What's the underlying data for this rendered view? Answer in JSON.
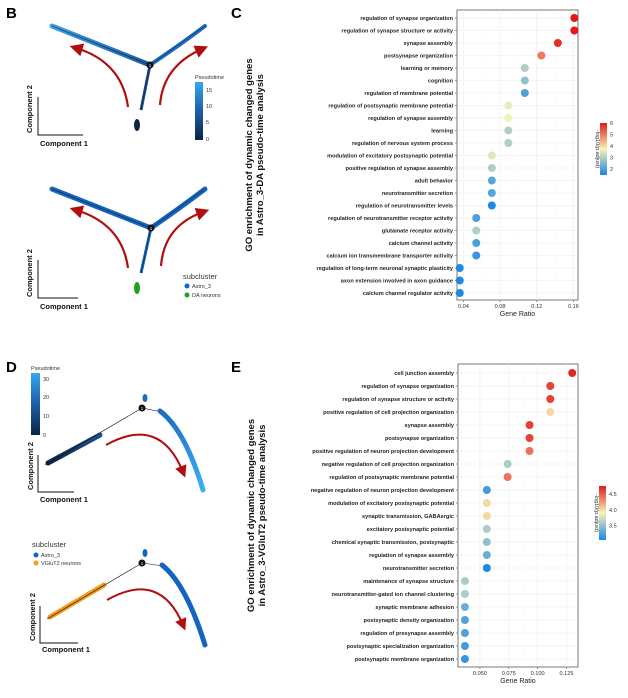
{
  "panels": {
    "B": {
      "label": "B",
      "x_axis": "Component 1",
      "y_axis": "Component 2",
      "pseudotime_legend": {
        "title": "Pseudotime",
        "ticks": [
          "0",
          "5",
          "10",
          "15"
        ]
      },
      "subcluster_legend": {
        "title": "subcluster",
        "items": [
          {
            "label": "Astro_3",
            "color": "#1565c0"
          },
          {
            "label": "DA neurons",
            "color": "#1fa01f"
          }
        ]
      },
      "branch_node": "1"
    },
    "D": {
      "label": "D",
      "x_axis": "Component 1",
      "y_axis": "Component 2",
      "pseudotime_legend": {
        "title": "Pseudotime",
        "ticks": [
          "0",
          "10",
          "20",
          "30"
        ]
      },
      "subcluster_legend": {
        "title": "subcluster",
        "items": [
          {
            "label": "Astro_3",
            "color": "#1565c0"
          },
          {
            "label": "VGluT2 neurons",
            "color": "#f39a1f"
          }
        ]
      },
      "branch_node": "1"
    }
  },
  "chart_data": [
    {
      "panel_label": "C",
      "type": "scatter",
      "ylabel": "GO enrichment of dynamic changed genes in Astro_3-DA pseudo-time analysis",
      "ylabel_lines": [
        "GO enrichment of dynamic changed genes",
        "in Astro_3-DA pseudo-time analysis"
      ],
      "xlabel": "Gene Ratio",
      "xlim": [
        0.033,
        0.165
      ],
      "xticks": [
        0.04,
        0.08,
        0.12,
        0.16
      ],
      "xtick_labels": [
        "0.04",
        "0.08",
        "0.12",
        "0.16"
      ],
      "grid": true,
      "color_legend": {
        "title": "-log10(p.adjust)",
        "range": [
          1.5,
          6
        ],
        "ticks": [
          "2",
          "3",
          "4",
          "5",
          "6"
        ],
        "tick_values": [
          2,
          3,
          4,
          5,
          6
        ],
        "low_color": "#1e88e5",
        "mid_color": "#f7f3b5",
        "high_color": "#e31a1c",
        "placement": "right"
      },
      "categories": [
        "regulation of synapse organization",
        "regulation of synapse structure or activity",
        "synapse assembly",
        "postsynapse organization",
        "learning or memory",
        "cognition",
        "regulation of membrane potential",
        "regulation of postsynaptic membrane potential",
        "regulation of synapse assembly",
        "learning",
        "regulation of nervous system process",
        "modulation of excitatory postsynaptic potential",
        "positive regulation of synapse assembly",
        "adult behavior",
        "neurotransmitter secretion",
        "regulation of neurotransmitter levels",
        "regulation of neurotransmitter receptor activity",
        "glutamate receptor activity",
        "calcium channel activity",
        "calcium ion transmembrane transporter activity",
        "regulation of long-term neuronal synaptic plasticity",
        "axon extension involved in axon guidance",
        "calcium channel regulator activity"
      ],
      "gene_ratio": [
        0.161,
        0.161,
        0.143,
        0.125,
        0.107,
        0.107,
        0.107,
        0.089,
        0.089,
        0.089,
        0.089,
        0.071,
        0.071,
        0.071,
        0.071,
        0.071,
        0.054,
        0.054,
        0.054,
        0.054,
        0.036,
        0.036,
        0.036
      ],
      "neg_log10_padj": [
        6.0,
        6.0,
        5.8,
        5.0,
        3.0,
        2.7,
        2.0,
        3.6,
        3.7,
        3.0,
        3.0,
        3.5,
        3.0,
        2.1,
        2.1,
        1.5,
        2.0,
        3.0,
        2.0,
        1.8,
        1.4,
        1.4,
        1.4
      ]
    },
    {
      "panel_label": "E",
      "type": "scatter",
      "ylabel": "GO enrichment of dynamic changed genes in Astro_3-VGluT2 pseudo-time analysis",
      "ylabel_lines": [
        "GO enrichment of dynamic changed genes",
        "in Astro_3-VGluT2 pseudo-time analysis"
      ],
      "xlabel": "Gene Ratio",
      "xlim": [
        0.031,
        0.135
      ],
      "xticks": [
        0.05,
        0.075,
        0.1,
        0.125
      ],
      "xtick_labels": [
        "0.050",
        "0.075",
        "0.100",
        "0.125"
      ],
      "grid": true,
      "color_legend": {
        "title": "-log10(p.adjust)",
        "range": [
          3.05,
          4.75
        ],
        "ticks": [
          "3.5",
          "4.0",
          "4.5"
        ],
        "tick_values": [
          3.5,
          4.0,
          4.5
        ],
        "low_color": "#1e88e5",
        "mid_color": "#f7f3b5",
        "high_color": "#e31a1c",
        "placement": "right"
      },
      "categories": [
        "cell junction assembly",
        "regulation of synapse organization",
        "regulation of synapse structure or activity",
        "positive regulation of cell projection organization",
        "synapse assembly",
        "postsynapse organization",
        "positive regulation of neuron projection development",
        "negative regulation of cell projection organization",
        "regulation of postsynaptic membrane potential",
        "negative regulation of neuron projection development",
        "modulation of excitatory postsynaptic potential",
        "synaptic transmission, GABAergic",
        "excitatory postsynaptic potential",
        "chemical synaptic transmission, postsynaptic",
        "regulation of synapse assembly",
        "neurotransmitter secretion",
        "maintenance of synapse structure",
        "neurotransmitter-gated ion channel clustering",
        "synaptic membrane adhesion",
        "postsynaptic density organization",
        "regulation of presynapse assembly",
        "postsynaptic specialization organization",
        "postsynaptic membrane organization"
      ],
      "gene_ratio": [
        0.13,
        0.111,
        0.111,
        0.111,
        0.093,
        0.093,
        0.093,
        0.074,
        0.074,
        0.056,
        0.056,
        0.056,
        0.056,
        0.056,
        0.056,
        0.056,
        0.037,
        0.037,
        0.037,
        0.037,
        0.037,
        0.037,
        0.037
      ],
      "neg_log10_padj": [
        4.7,
        4.6,
        4.6,
        4.0,
        4.6,
        4.6,
        4.4,
        3.6,
        4.4,
        3.2,
        4.0,
        4.0,
        3.6,
        3.5,
        3.35,
        3.05,
        3.6,
        3.6,
        3.35,
        3.25,
        3.25,
        3.2,
        3.15
      ]
    }
  ]
}
